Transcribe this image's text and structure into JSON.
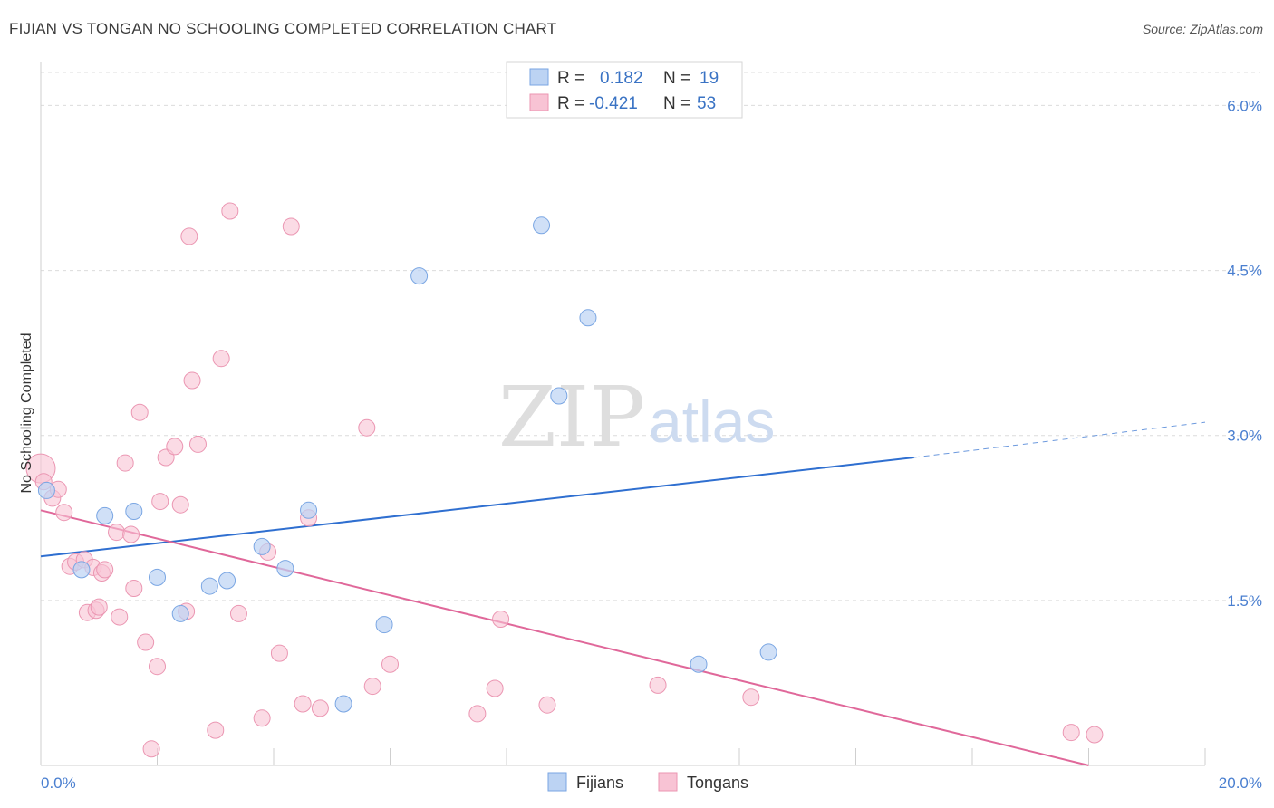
{
  "header": {
    "title": "FIJIAN VS TONGAN NO SCHOOLING COMPLETED CORRELATION CHART",
    "source": "Source: ZipAtlas.com"
  },
  "watermark": {
    "zip": "ZIP",
    "atlas": "atlas"
  },
  "stats": {
    "fijian": {
      "r_label": "R =",
      "r": "0.182",
      "n_label": "N =",
      "n": "19"
    },
    "tongan": {
      "r_label": "R =",
      "r": "-0.421",
      "n_label": "N =",
      "n": "53"
    }
  },
  "legend": {
    "fijians": "Fijians",
    "tongans": "Tongans"
  },
  "colors": {
    "fijian_fill": "#bcd3f3",
    "fijian_stroke": "#7aa6e3",
    "fijian_line": "#2f6fd0",
    "tongan_fill": "#f8c3d4",
    "tongan_stroke": "#eb96b2",
    "tongan_line": "#e0689a",
    "tick_text": "#4a7fd0",
    "grid": "#dcdcdc"
  },
  "chart_data": {
    "type": "scatter",
    "title": "FIJIAN VS TONGAN NO SCHOOLING COMPLETED CORRELATION CHART",
    "xlabel": "",
    "ylabel": "No Schooling Completed",
    "xlim": [
      0,
      20
    ],
    "ylim": [
      0,
      6.3
    ],
    "x_tick_labels": [
      "0.0%",
      "20.0%"
    ],
    "y_ticks": [
      1.5,
      3.0,
      4.5,
      6.0
    ],
    "y_tick_labels": [
      "1.5%",
      "3.0%",
      "4.5%",
      "6.0%"
    ],
    "grid": true,
    "legend_position": "bottom-center",
    "series": [
      {
        "name": "Fijians",
        "points": [
          [
            0.1,
            2.5
          ],
          [
            1.1,
            2.27
          ],
          [
            1.6,
            2.31
          ],
          [
            0.7,
            1.78
          ],
          [
            2.0,
            1.71
          ],
          [
            2.4,
            1.38
          ],
          [
            2.9,
            1.63
          ],
          [
            3.2,
            1.68
          ],
          [
            3.8,
            1.99
          ],
          [
            4.2,
            1.79
          ],
          [
            4.6,
            2.32
          ],
          [
            5.2,
            0.56
          ],
          [
            5.9,
            1.28
          ],
          [
            6.5,
            4.45
          ],
          [
            8.6,
            4.91
          ],
          [
            8.9,
            3.36
          ],
          [
            9.4,
            4.07
          ],
          [
            11.3,
            0.92
          ],
          [
            12.5,
            1.03
          ]
        ],
        "trend": {
          "x": [
            0,
            15
          ],
          "y": [
            1.9,
            2.8
          ],
          "dashed_to": {
            "x": 20,
            "y": 3.12
          }
        }
      },
      {
        "name": "Tongans",
        "points": [
          [
            0.0,
            2.7
          ],
          [
            0.2,
            2.43
          ],
          [
            0.3,
            2.51
          ],
          [
            0.4,
            2.3
          ],
          [
            0.5,
            1.81
          ],
          [
            0.6,
            1.85
          ],
          [
            0.75,
            1.87
          ],
          [
            0.8,
            1.39
          ],
          [
            0.9,
            1.8
          ],
          [
            0.95,
            1.41
          ],
          [
            1.0,
            1.44
          ],
          [
            1.05,
            1.75
          ],
          [
            1.1,
            1.78
          ],
          [
            1.3,
            2.12
          ],
          [
            1.35,
            1.35
          ],
          [
            1.45,
            2.75
          ],
          [
            1.55,
            2.1
          ],
          [
            1.6,
            1.61
          ],
          [
            1.7,
            3.21
          ],
          [
            1.8,
            1.12
          ],
          [
            1.9,
            0.15
          ],
          [
            2.0,
            0.9
          ],
          [
            2.05,
            2.4
          ],
          [
            2.15,
            2.8
          ],
          [
            2.3,
            2.9
          ],
          [
            2.4,
            2.37
          ],
          [
            2.5,
            1.4
          ],
          [
            2.55,
            4.81
          ],
          [
            2.6,
            3.5
          ],
          [
            2.7,
            2.92
          ],
          [
            3.0,
            0.32
          ],
          [
            3.1,
            3.7
          ],
          [
            3.25,
            5.04
          ],
          [
            3.4,
            1.38
          ],
          [
            3.8,
            0.43
          ],
          [
            3.9,
            1.94
          ],
          [
            4.1,
            1.02
          ],
          [
            4.3,
            4.9
          ],
          [
            4.5,
            0.56
          ],
          [
            4.6,
            2.25
          ],
          [
            4.8,
            0.52
          ],
          [
            5.6,
            3.07
          ],
          [
            5.7,
            0.72
          ],
          [
            6.0,
            0.92
          ],
          [
            7.5,
            0.47
          ],
          [
            7.8,
            0.7
          ],
          [
            7.9,
            1.33
          ],
          [
            8.7,
            0.55
          ],
          [
            10.6,
            0.73
          ],
          [
            12.2,
            0.62
          ],
          [
            17.7,
            0.3
          ],
          [
            18.1,
            0.28
          ],
          [
            0.05,
            2.58
          ]
        ],
        "trend": {
          "x": [
            0,
            18
          ],
          "y": [
            2.32,
            0.0
          ]
        }
      }
    ]
  }
}
